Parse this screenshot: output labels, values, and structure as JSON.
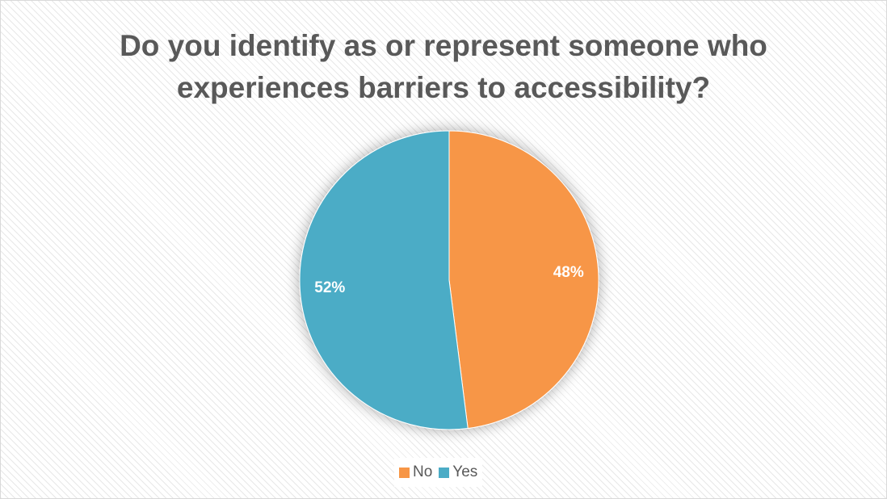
{
  "chart_data": {
    "type": "pie",
    "title": "Do you identify as or represent someone who experiences barriers to accessibility?",
    "categories": [
      "No",
      "Yes"
    ],
    "values": [
      48,
      52
    ],
    "labels": [
      "48%",
      "52%"
    ],
    "colors": [
      "#F79646",
      "#4BACC6"
    ],
    "start_angle_deg": 0,
    "direction": "clockwise",
    "legend_position": "bottom"
  }
}
